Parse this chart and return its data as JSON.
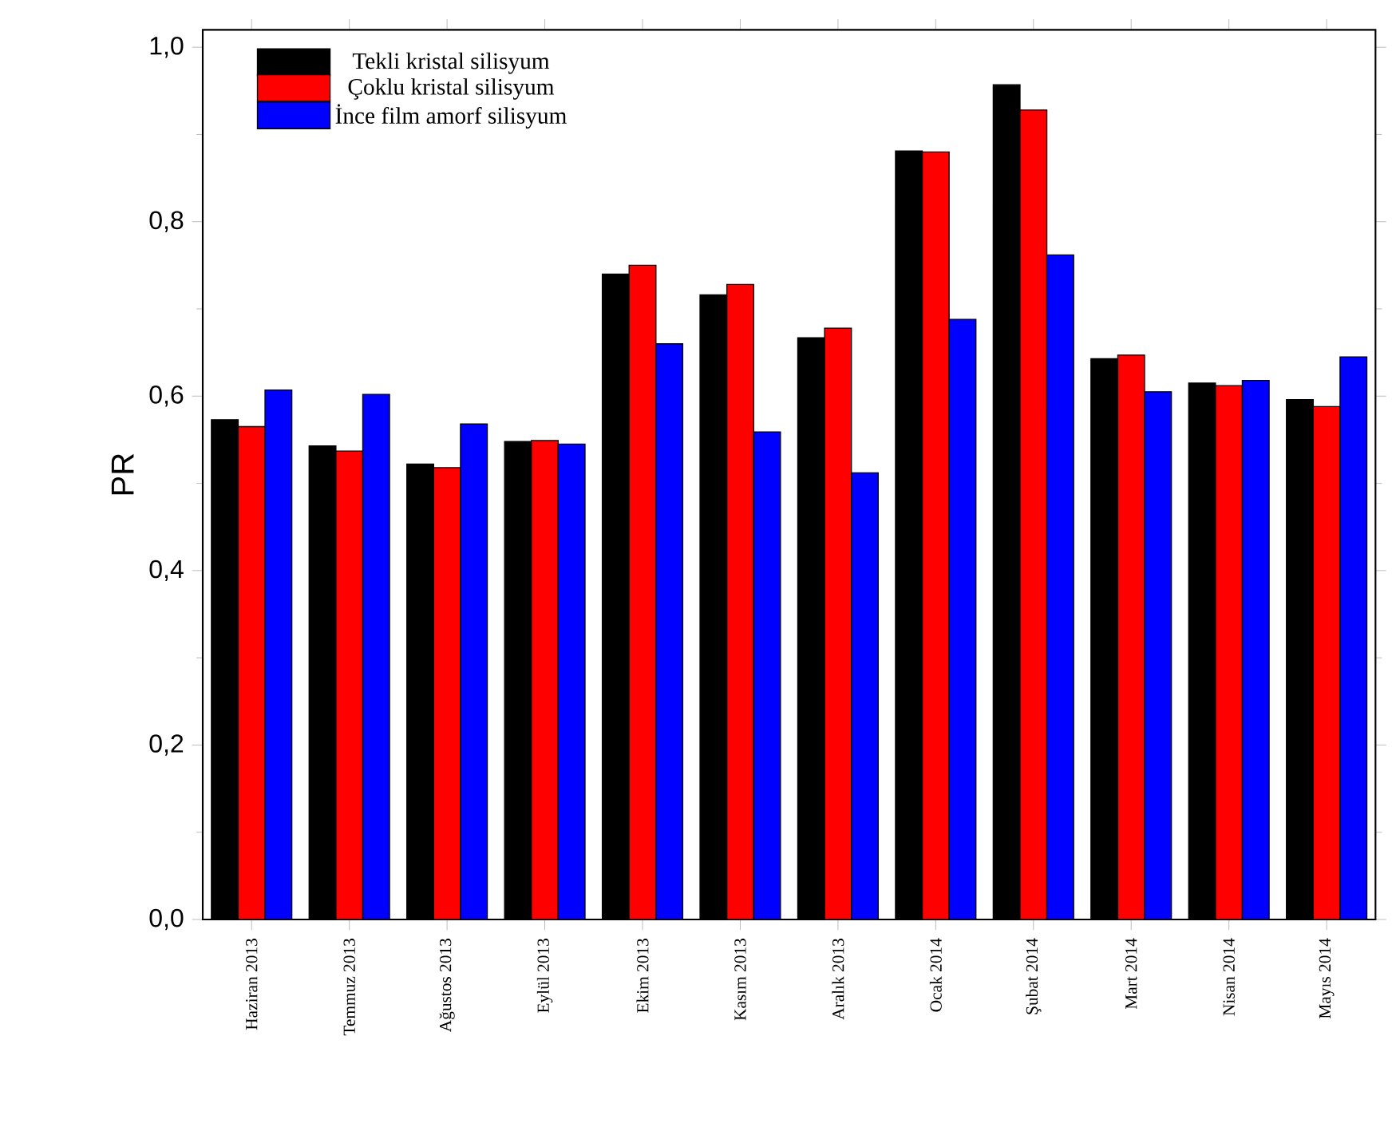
{
  "chart_data": {
    "type": "bar",
    "ylabel": "PR",
    "categories": [
      "Haziran 2013",
      "Temmuz 2013",
      "Ağustos 2013",
      "Eylül 2013",
      "Ekim 2013",
      "Kasım 2013",
      "Aralık 2013",
      "Ocak 2014",
      "Şubat 2014",
      "Mart 2014",
      "Nisan 2014",
      "Mayıs 2014"
    ],
    "series": [
      {
        "name": "Tekli kristal silisyum",
        "color": "#000000",
        "values": [
          0.573,
          0.543,
          0.522,
          0.548,
          0.74,
          0.716,
          0.667,
          0.881,
          0.957,
          0.643,
          0.615,
          0.596
        ]
      },
      {
        "name": "Çoklu kristal silisyum",
        "color": "#ff0000",
        "values": [
          0.565,
          0.537,
          0.518,
          0.549,
          0.75,
          0.728,
          0.678,
          0.88,
          0.928,
          0.647,
          0.612,
          0.588
        ]
      },
      {
        "name": "İnce film amorf silisyum",
        "color": "#0000ff",
        "values": [
          0.607,
          0.602,
          0.568,
          0.545,
          0.66,
          0.559,
          0.512,
          0.688,
          0.762,
          0.605,
          0.618,
          0.645
        ]
      }
    ],
    "ylim": [
      0,
      1.02
    ],
    "yticks": [
      {
        "value": 0,
        "label": "0,0"
      },
      {
        "value": 0.2,
        "label": "0,2"
      },
      {
        "value": 0.4,
        "label": "0,4"
      },
      {
        "value": 0.6,
        "label": "0,6"
      },
      {
        "value": 0.8,
        "label": "0,8"
      },
      {
        "value": 1.0,
        "label": "1,0"
      }
    ],
    "legend": "top left",
    "grid": false
  }
}
